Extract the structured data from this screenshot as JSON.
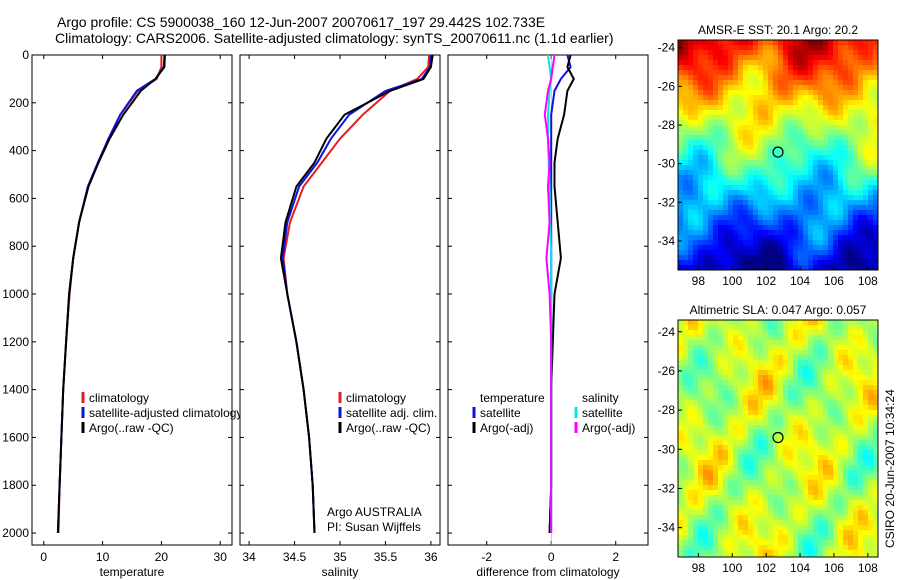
{
  "header": {
    "line1": "Argo profile: CS 5900038_160 12-Jun-2007 20070617_197 29.442S 102.733E",
    "line2": "Climatology: CARS2006. Satellite-adjusted climatology: synTS_20070611.nc (1.1d earlier)"
  },
  "footer": {
    "text": "CSIRO 20-Jun-2007 10:34:24"
  },
  "colors": {
    "climatology": "#e02020",
    "satellite": "#1010e0",
    "argo": "#000000",
    "sal_satellite": "#00e8e8",
    "sal_argo": "#ff00ff"
  },
  "chart_data": [
    {
      "id": "temperature",
      "type": "line",
      "xlabel": "temperature",
      "ylabel": "",
      "xlim": [
        -2,
        32
      ],
      "ylim": [
        2050,
        0
      ],
      "xticks": [
        0,
        10,
        20,
        30
      ],
      "xtick_labels": [
        "0",
        "10",
        "20",
        "30"
      ],
      "yticks": [
        0,
        200,
        400,
        600,
        800,
        1000,
        1200,
        1400,
        1600,
        1800,
        2000
      ],
      "ytick_labels": [
        "0",
        "200",
        "400",
        "600",
        "800",
        "1000",
        "1200",
        "1400",
        "1600",
        "1800",
        "2000"
      ],
      "legend": [
        "climatology",
        "satellite-adjusted climatology",
        "Argo(..raw -QC)"
      ],
      "series": [
        {
          "name": "climatology",
          "color_key": "climatology",
          "x": [
            20.0,
            20.0,
            19.2,
            16.0,
            13.0,
            11.0,
            9.2,
            7.5,
            6.0,
            5.0,
            4.4,
            3.8,
            3.3,
            3.0,
            2.7,
            2.5
          ],
          "y": [
            0,
            50,
            100,
            150,
            250,
            350,
            450,
            550,
            700,
            850,
            1000,
            1200,
            1400,
            1600,
            1800,
            2000
          ]
        },
        {
          "name": "satellite",
          "color_key": "satellite",
          "x": [
            20.5,
            20.4,
            19.0,
            15.8,
            13.0,
            11.0,
            9.2,
            7.5,
            6.0,
            5.0,
            4.3,
            3.8,
            3.3,
            3.0,
            2.7,
            2.4
          ],
          "y": [
            0,
            50,
            100,
            150,
            250,
            350,
            450,
            550,
            700,
            850,
            1000,
            1200,
            1400,
            1600,
            1800,
            2000
          ]
        },
        {
          "name": "argo",
          "color_key": "argo",
          "x": [
            20.6,
            20.5,
            19.0,
            16.5,
            13.5,
            11.2,
            9.3,
            7.6,
            6.0,
            5.0,
            4.3,
            3.8,
            3.3,
            3.0,
            2.7,
            2.4
          ],
          "y": [
            0,
            50,
            100,
            150,
            250,
            350,
            450,
            550,
            700,
            850,
            1000,
            1200,
            1400,
            1600,
            1800,
            2000
          ]
        }
      ]
    },
    {
      "id": "salinity",
      "type": "line",
      "xlabel": "salinity",
      "ylabel": "",
      "xlim": [
        33.9,
        36.1
      ],
      "ylim": [
        2050,
        0
      ],
      "xticks": [
        34,
        34.5,
        35,
        35.5,
        36
      ],
      "xtick_labels": [
        "34",
        "34.5",
        "35",
        "35.5",
        "36"
      ],
      "legend": [
        "climatology",
        "satellite adj. clim.",
        "Argo(..raw -QC)"
      ],
      "annotation": [
        "Argo AUSTRALIA",
        "PI: Susan Wijffels"
      ],
      "series": [
        {
          "name": "climatology",
          "color_key": "climatology",
          "x": [
            35.98,
            35.97,
            35.85,
            35.55,
            35.25,
            35.0,
            34.8,
            34.6,
            34.45,
            34.38,
            34.42,
            34.52,
            34.6,
            34.66,
            34.7,
            34.72
          ],
          "y": [
            0,
            50,
            100,
            150,
            250,
            350,
            450,
            550,
            700,
            850,
            1000,
            1200,
            1400,
            1600,
            1800,
            2000
          ]
        },
        {
          "name": "satellite",
          "color_key": "satellite",
          "x": [
            36.0,
            35.99,
            35.9,
            35.5,
            35.1,
            34.9,
            34.75,
            34.55,
            34.42,
            34.37,
            34.42,
            34.52,
            34.6,
            34.66,
            34.7,
            34.72
          ],
          "y": [
            0,
            50,
            100,
            150,
            250,
            350,
            450,
            550,
            700,
            850,
            1000,
            1200,
            1400,
            1600,
            1800,
            2000
          ]
        },
        {
          "name": "argo",
          "color_key": "argo",
          "x": [
            36.02,
            36.0,
            35.92,
            35.55,
            35.05,
            34.85,
            34.72,
            34.52,
            34.4,
            34.35,
            34.42,
            34.52,
            34.6,
            34.66,
            34.7,
            34.72
          ],
          "y": [
            0,
            50,
            100,
            150,
            250,
            350,
            450,
            550,
            700,
            850,
            1000,
            1200,
            1400,
            1600,
            1800,
            2000
          ]
        }
      ]
    },
    {
      "id": "difference",
      "type": "line",
      "xlabel": "difference from climatology",
      "ylabel": "",
      "xlim": [
        -3.2,
        3.0
      ],
      "ylim": [
        2050,
        0
      ],
      "xticks": [
        -2,
        0,
        2
      ],
      "xtick_labels": [
        "-2",
        "0",
        "2"
      ],
      "legend_temperature_title": "temperature",
      "legend_temperature": [
        "satellite",
        "Argo(-adj)"
      ],
      "legend_salinity_title": "salinity",
      "legend_salinity": [
        "satellite",
        "Argo(-adj)"
      ],
      "series": [
        {
          "name": "temperature satellite",
          "color_key": "satellite",
          "x": [
            0.5,
            0.6,
            0.3,
            0.1,
            0.0,
            0.0,
            0.0,
            0.0,
            0.0,
            0.0,
            0.0,
            0.0,
            0.0,
            0.0,
            0.0,
            -0.05
          ],
          "y": [
            0,
            50,
            100,
            150,
            250,
            350,
            450,
            550,
            700,
            850,
            1000,
            1200,
            1400,
            1600,
            1800,
            2000
          ]
        },
        {
          "name": "temperature Argo(-adj)",
          "color_key": "argo",
          "x": [
            0.6,
            0.5,
            0.7,
            0.5,
            0.4,
            0.2,
            0.1,
            0.1,
            0.2,
            0.3,
            0.1,
            0.05,
            0.0,
            0.0,
            0.0,
            -0.05
          ],
          "y": [
            0,
            50,
            100,
            150,
            250,
            350,
            450,
            550,
            700,
            850,
            1000,
            1200,
            1400,
            1600,
            1800,
            2000
          ]
        },
        {
          "name": "salinity satellite",
          "color_key": "sal_satellite",
          "x": [
            -0.1,
            -0.05,
            0.0,
            -0.05,
            -0.1,
            -0.1,
            -0.08,
            -0.05,
            -0.03,
            0.0,
            0.0,
            0.0,
            0.0,
            0.0,
            0.0,
            0.0
          ],
          "y": [
            0,
            50,
            100,
            150,
            250,
            350,
            450,
            550,
            700,
            850,
            1000,
            1200,
            1400,
            1600,
            1800,
            2000
          ]
        },
        {
          "name": "salinity Argo(-adj)",
          "color_key": "sal_argo",
          "x": [
            0.1,
            0.05,
            0.0,
            -0.1,
            -0.2,
            -0.1,
            -0.05,
            -0.1,
            -0.05,
            -0.15,
            -0.05,
            0.0,
            0.0,
            0.0,
            0.0,
            0.0
          ],
          "y": [
            0,
            50,
            100,
            150,
            250,
            350,
            450,
            550,
            700,
            850,
            1000,
            1200,
            1400,
            1600,
            1800,
            2000
          ]
        }
      ]
    },
    {
      "id": "sst_map",
      "type": "heatmap",
      "title": "AMSR-E SST: 20.1 Argo: 20.2",
      "xlim": [
        96.8,
        108.6
      ],
      "ylim": [
        -35.5,
        -23.6
      ],
      "xticks": [
        98,
        100,
        102,
        104,
        106,
        108
      ],
      "xtick_labels": [
        "98",
        "100",
        "102",
        "104",
        "106",
        "108"
      ],
      "yticks": [
        -24,
        -26,
        -28,
        -30,
        -32,
        -34
      ],
      "ytick_labels": [
        "-24",
        "-26",
        "-28",
        "-30",
        "-32",
        "-34"
      ],
      "marker": {
        "lon": 102.7,
        "lat": -29.4
      }
    },
    {
      "id": "sla_map",
      "type": "heatmap",
      "title": "Altimetric SLA: 0.047 Argo: 0.057",
      "xlim": [
        96.8,
        108.6
      ],
      "ylim": [
        -35.5,
        -23.4
      ],
      "xticks": [
        98,
        100,
        102,
        104,
        106,
        108
      ],
      "xtick_labels": [
        "98",
        "100",
        "102",
        "104",
        "106",
        "108"
      ],
      "yticks": [
        -24,
        -26,
        -28,
        -30,
        -32,
        -34
      ],
      "ytick_labels": [
        "-24",
        "-26",
        "-28",
        "-30",
        "-32",
        "-34"
      ],
      "marker": {
        "lon": 102.7,
        "lat": -29.4
      }
    }
  ]
}
